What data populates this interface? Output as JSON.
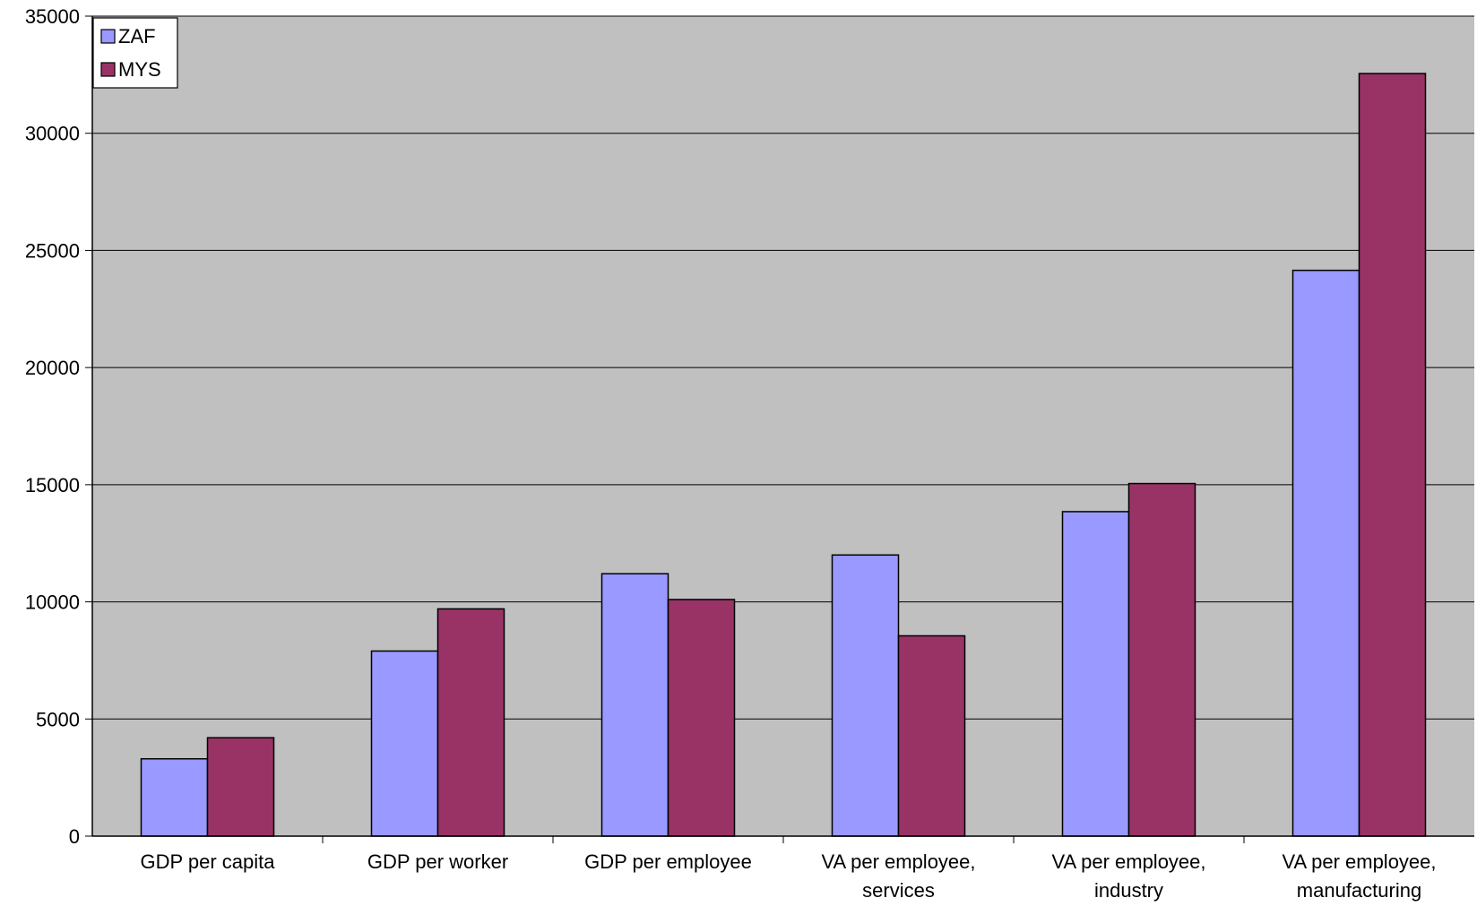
{
  "chart_data": {
    "type": "bar",
    "categories": [
      [
        "GDP per capita"
      ],
      [
        "GDP per worker"
      ],
      [
        "GDP per employee"
      ],
      [
        "VA per employee,",
        "services"
      ],
      [
        "VA per employee,",
        "industry"
      ],
      [
        "VA per employee,",
        "manufacturing"
      ]
    ],
    "series": [
      {
        "name": "ZAF",
        "color": "#9999ff",
        "values": [
          3300,
          7900,
          11200,
          12000,
          13850,
          24150
        ]
      },
      {
        "name": "MYS",
        "color": "#993366",
        "values": [
          4200,
          9700,
          10100,
          8550,
          15050,
          32550
        ]
      }
    ],
    "ylim": [
      0,
      35000
    ],
    "yticks": [
      0,
      5000,
      10000,
      15000,
      20000,
      25000,
      30000,
      35000
    ],
    "grid": true,
    "legend": "top-left",
    "plot_background": "#c0c0c0",
    "title": "",
    "xlabel": "",
    "ylabel": ""
  }
}
